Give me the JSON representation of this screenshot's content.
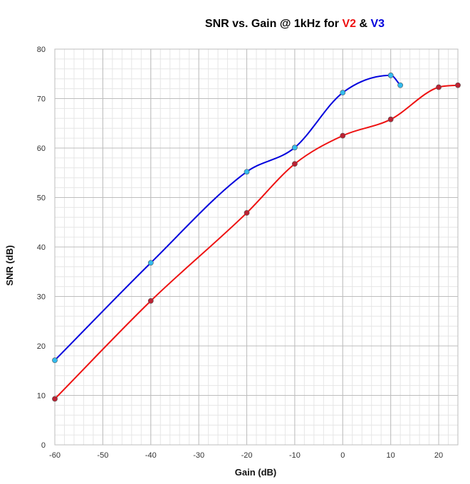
{
  "chart_data": {
    "type": "line",
    "title_parts": [
      "SNR vs. Gain @ 1kHz for ",
      "V2",
      " & ",
      "V3"
    ],
    "xlabel": "Gain (dB)",
    "ylabel": "SNR (dB)",
    "xlim": [
      -60,
      24
    ],
    "ylim": [
      0,
      80
    ],
    "x_major_ticks": [
      -60,
      -50,
      -40,
      -30,
      -20,
      -10,
      0,
      10,
      20
    ],
    "y_major_ticks": [
      0,
      10,
      20,
      30,
      40,
      50,
      60,
      70,
      80
    ],
    "x_minor_step": 2,
    "y_minor_step": 2,
    "grid": true,
    "legend": "none",
    "series": [
      {
        "name": "V3",
        "line_color": "#0000dd",
        "marker_color": "#33bbee",
        "points": [
          [
            -60,
            17.1
          ],
          [
            -40,
            36.8
          ],
          [
            -20,
            55.2
          ],
          [
            -10,
            60.1
          ],
          [
            0,
            71.2
          ],
          [
            10,
            74.7
          ],
          [
            12,
            72.7
          ]
        ]
      },
      {
        "name": "V2",
        "line_color": "#ee1111",
        "marker_color": "#bb2233",
        "points": [
          [
            -60,
            9.3
          ],
          [
            -40,
            29.1
          ],
          [
            -20,
            46.9
          ],
          [
            -10,
            56.8
          ],
          [
            0,
            62.5
          ],
          [
            10,
            65.8
          ],
          [
            20,
            72.3
          ],
          [
            24,
            72.7
          ]
        ]
      }
    ]
  }
}
